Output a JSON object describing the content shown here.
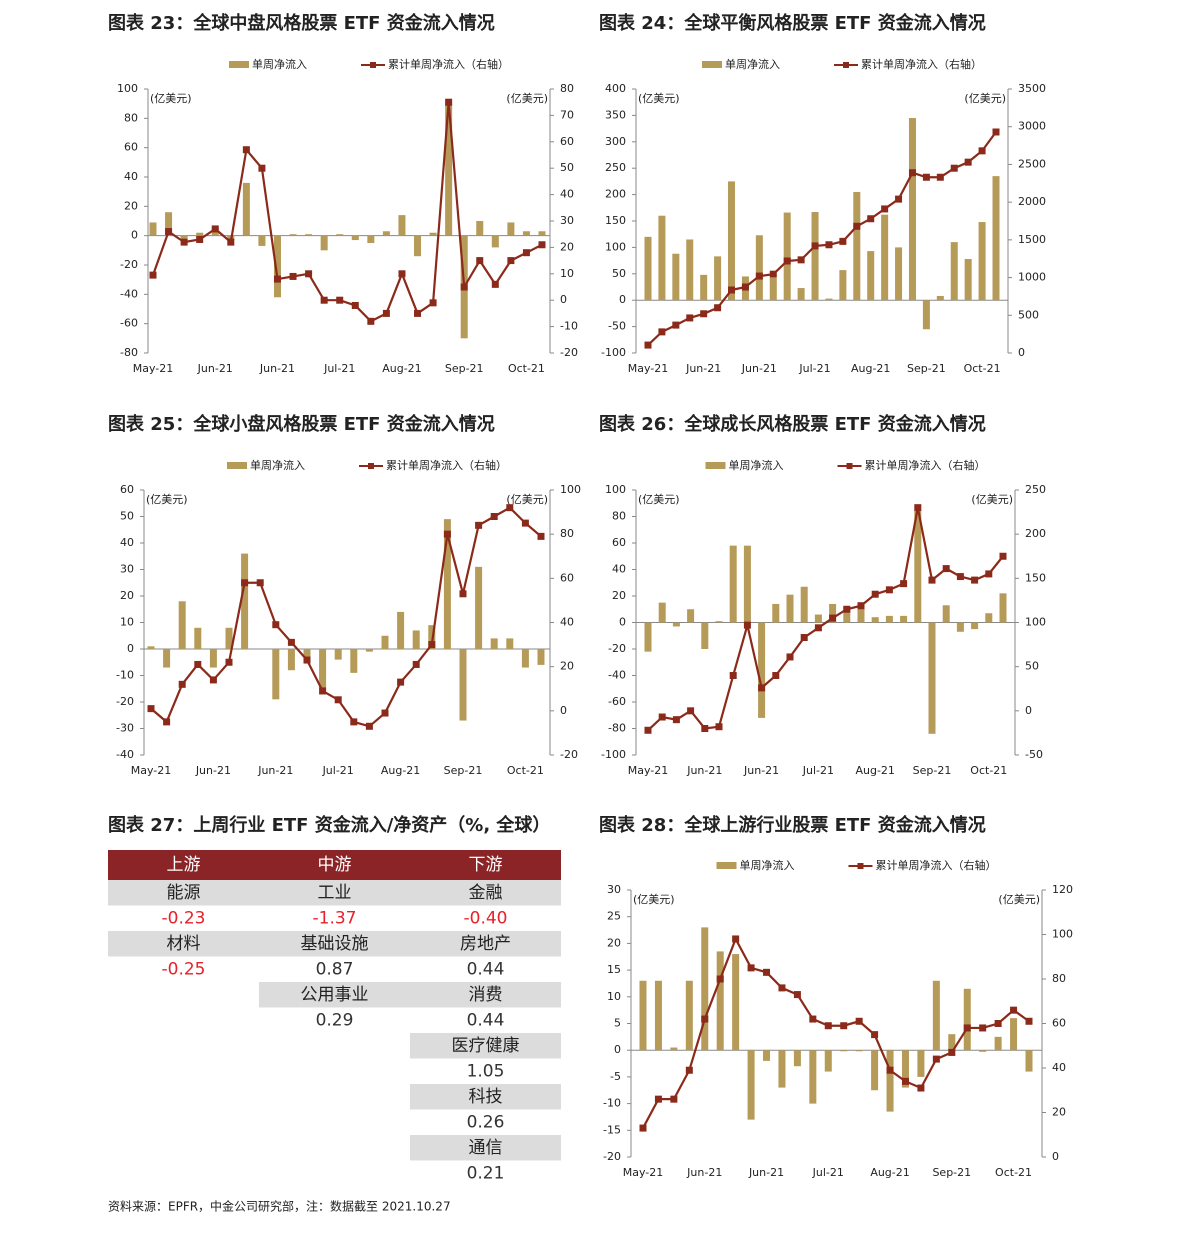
{
  "chart_data": [
    {
      "type": "bar",
      "title": "图表 23：全球中盘风格股票 ETF 资金流入情况",
      "y_label": "(亿美元)",
      "y2_label": "(亿美元)",
      "categories": [
        "May-21",
        null,
        null,
        null,
        "Jun-21",
        null,
        null,
        null,
        "Jun-21",
        null,
        null,
        null,
        "Jul-21",
        null,
        null,
        null,
        "Aug-21",
        null,
        null,
        null,
        "Sep-21",
        null,
        null,
        null,
        "Oct-21",
        null
      ],
      "series": [
        {
          "name": "单周净流入",
          "type": "bar",
          "color": "#b59a58",
          "values": [
            9,
            16,
            -2,
            2,
            5,
            -3,
            36,
            -7,
            -42,
            1,
            1,
            -10,
            1,
            -3,
            -5,
            3,
            14,
            -14,
            2,
            90,
            -70,
            10,
            -8,
            9,
            3,
            3
          ]
        },
        {
          "name": "累计单周净流入（右轴）",
          "type": "line",
          "axis": "y2",
          "color": "#8b2a1a",
          "values": [
            9.5,
            26,
            22,
            23,
            27,
            22,
            57,
            50,
            8,
            9,
            10,
            0,
            0,
            -2,
            -8,
            -5,
            10,
            -5,
            -1,
            75,
            5,
            15,
            6,
            15,
            18,
            21
          ]
        }
      ],
      "ylim": [
        -80,
        100
      ],
      "yticks": [
        -80,
        -60,
        -40,
        -20,
        0,
        20,
        40,
        60,
        80,
        100
      ],
      "y2lim": [
        -20,
        80
      ],
      "y2ticks": [
        -20,
        -10,
        0,
        10,
        20,
        30,
        40,
        50,
        60,
        70,
        80
      ]
    },
    {
      "type": "bar",
      "title": "图表 24：全球平衡风格股票 ETF 资金流入情况",
      "y_label": "(亿美元)",
      "y2_label": "(亿美元)",
      "categories": [
        "May-21",
        null,
        null,
        null,
        "Jun-21",
        null,
        null,
        null,
        "Jun-21",
        null,
        null,
        null,
        "Jul-21",
        null,
        null,
        null,
        "Aug-21",
        null,
        null,
        null,
        "Sep-21",
        null,
        null,
        null,
        "Oct-21",
        null
      ],
      "series": [
        {
          "name": "单周净流入",
          "type": "bar",
          "color": "#b59a58",
          "values": [
            120,
            160,
            88,
            115,
            48,
            83,
            225,
            45,
            123,
            42,
            166,
            23,
            167,
            3,
            57,
            205,
            93,
            162,
            100,
            345,
            -55,
            8,
            110,
            78,
            148,
            235
          ]
        },
        {
          "name": "累计单周净流入（右轴）",
          "type": "line",
          "axis": "y2",
          "color": "#8b2a1a",
          "values": [
            105,
            280,
            370,
            465,
            520,
            600,
            835,
            875,
            1020,
            1045,
            1220,
            1235,
            1420,
            1435,
            1480,
            1680,
            1780,
            1910,
            2040,
            2390,
            2330,
            2330,
            2450,
            2530,
            2680,
            2930
          ]
        }
      ],
      "ylim": [
        -100,
        400
      ],
      "yticks": [
        -100,
        -50,
        0,
        50,
        100,
        150,
        200,
        250,
        300,
        350,
        400
      ],
      "y2lim": [
        0,
        3500
      ],
      "y2ticks": [
        0,
        500,
        1000,
        1500,
        2000,
        2500,
        3000,
        3500
      ]
    },
    {
      "type": "bar",
      "title": "图表 25：全球小盘风格股票 ETF 资金流入情况",
      "y_label": "(亿美元)",
      "y2_label": "(亿美元)",
      "categories": [
        "May-21",
        null,
        null,
        null,
        "Jun-21",
        null,
        null,
        null,
        "Jun-21",
        null,
        null,
        null,
        "Jul-21",
        null,
        null,
        null,
        "Aug-21",
        null,
        null,
        null,
        "Sep-21",
        null,
        null,
        null,
        "Oct-21",
        null
      ],
      "series": [
        {
          "name": "单周净流入",
          "type": "bar",
          "color": "#b59a58",
          "values": [
            1,
            -7,
            18,
            8,
            -7,
            8,
            36,
            0,
            -19,
            -8,
            -5,
            -15,
            -4,
            -9,
            -1,
            5,
            14,
            7,
            9,
            49,
            -27,
            31,
            4,
            4,
            -7,
            -6
          ]
        },
        {
          "name": "累计单周净流入（右轴）",
          "type": "line",
          "axis": "y2",
          "color": "#8b2a1a",
          "values": [
            1,
            -5,
            12,
            21,
            14,
            22,
            58,
            58,
            39,
            31,
            23,
            9,
            5,
            -5,
            -7,
            -1,
            13,
            21,
            30,
            80,
            53,
            84,
            88,
            92,
            85,
            79
          ]
        }
      ],
      "ylim": [
        -40,
        60
      ],
      "yticks": [
        -40,
        -30,
        -20,
        -10,
        0,
        10,
        20,
        30,
        40,
        50,
        60
      ],
      "y2lim": [
        -20,
        100
      ],
      "y2ticks": [
        -20,
        0,
        20,
        40,
        60,
        80,
        100
      ]
    },
    {
      "type": "bar",
      "title": "图表 26：全球成长风格股票 ETF 资金流入情况",
      "y_label": "(亿美元)",
      "y2_label": "(亿美元)",
      "categories": [
        "May-21",
        null,
        null,
        null,
        "Jun-21",
        null,
        null,
        null,
        "Jun-21",
        null,
        null,
        null,
        "Jul-21",
        null,
        null,
        null,
        "Aug-21",
        null,
        null,
        null,
        "Sep-21",
        null,
        null,
        null,
        "Oct-21",
        null
      ],
      "series": [
        {
          "name": "单周净流入",
          "type": "bar",
          "color": "#b59a58",
          "values": [
            -22,
            15,
            -3,
            10,
            -20,
            1,
            58,
            58,
            -72,
            14,
            21,
            27,
            6,
            14,
            12,
            14,
            4,
            5,
            5,
            84,
            -84,
            13,
            -7,
            -5,
            7,
            22
          ]
        },
        {
          "name": "累计单周净流入（右轴）",
          "type": "line",
          "axis": "y2",
          "color": "#8b2a1a",
          "values": [
            -22,
            -7,
            -10,
            0,
            -20,
            -18,
            40,
            97,
            26,
            40,
            61,
            83,
            94,
            105,
            115,
            119,
            132,
            137,
            144,
            230,
            148,
            161,
            152,
            148,
            155,
            175
          ]
        }
      ],
      "ylim": [
        -100,
        100
      ],
      "yticks": [
        -100,
        -80,
        -60,
        -40,
        -20,
        0,
        20,
        40,
        60,
        80,
        100
      ],
      "y2lim": [
        -50,
        250
      ],
      "y2ticks": [
        -50,
        0,
        50,
        100,
        150,
        200,
        250
      ]
    },
    {
      "type": "bar",
      "title": "图表 28：全球上游行业股票 ETF 资金流入情况",
      "y_label": "(亿美元)",
      "y2_label": "(亿美元)",
      "categories": [
        "May-21",
        null,
        null,
        null,
        "Jun-21",
        null,
        null,
        null,
        "Jun-21",
        null,
        null,
        null,
        "Jul-21",
        null,
        null,
        null,
        "Aug-21",
        null,
        null,
        null,
        "Sep-21",
        null,
        null,
        null,
        "Oct-21",
        null
      ],
      "series": [
        {
          "name": "单周净流入",
          "type": "bar",
          "color": "#b59a58",
          "values": [
            13,
            13,
            0.5,
            13,
            23,
            18.5,
            18,
            -13,
            -2,
            -7,
            -3,
            -10,
            -4,
            -0.2,
            -0.2,
            -7.5,
            -11.5,
            -7,
            -5,
            13,
            3,
            11.5,
            -0.3,
            2.5,
            6,
            -4
          ]
        },
        {
          "name": "累计单周净流入（右轴）",
          "type": "line",
          "axis": "y2",
          "color": "#8b2a1a",
          "values": [
            13,
            26,
            26,
            39,
            62,
            80,
            98,
            85,
            83,
            76,
            73,
            62,
            59,
            59,
            61,
            55,
            39,
            34,
            31,
            44,
            47,
            58,
            58,
            60,
            66,
            61
          ]
        }
      ],
      "ylim": [
        -20,
        30
      ],
      "yticks": [
        -20,
        -15,
        -10,
        -5,
        0,
        5,
        10,
        15,
        20,
        25,
        30
      ],
      "y2lim": [
        0,
        120
      ],
      "y2ticks": [
        0,
        20,
        40,
        60,
        80,
        100,
        120
      ]
    }
  ],
  "table": {
    "title": "图表 27：上周行业 ETF 资金流入/净资产（%, 全球）",
    "columns": [
      {
        "header": "上游",
        "items": [
          {
            "name": "能源",
            "value": "-0.23"
          },
          {
            "name": "材料",
            "value": "-0.25"
          }
        ]
      },
      {
        "header": "中游",
        "items": [
          {
            "name": "工业",
            "value": "-1.37"
          },
          {
            "name": "基础设施",
            "value": "0.87"
          },
          {
            "name": "公用事业",
            "value": "0.29"
          }
        ]
      },
      {
        "header": "下游",
        "items": [
          {
            "name": "金融",
            "value": "-0.40"
          },
          {
            "name": "房地产",
            "value": "0.44"
          },
          {
            "name": "消费",
            "value": "0.44"
          },
          {
            "name": "医疗健康",
            "value": "1.05"
          },
          {
            "name": "科技",
            "value": "0.26"
          },
          {
            "name": "通信",
            "value": "0.21"
          }
        ]
      }
    ]
  },
  "source": "资料来源：EPFR，中金公司研究部，注：数据截至 2021.10.27"
}
